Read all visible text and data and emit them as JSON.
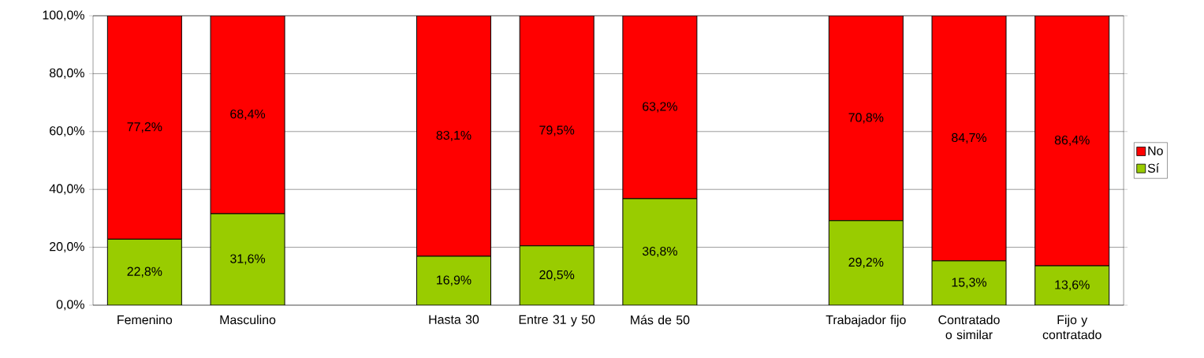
{
  "chart_data": {
    "type": "bar",
    "stacked": true,
    "categories": [
      "Femenino",
      "Masculino",
      null,
      "Hasta 30",
      "Entre 31 y 50",
      "Más de 50",
      null,
      "Trabajador fijo",
      "Contratado o similar",
      "Fijo y contratado"
    ],
    "series": [
      {
        "name": "Sí",
        "color": "#99cc00",
        "values": [
          22.8,
          31.6,
          null,
          16.9,
          20.5,
          36.8,
          null,
          29.2,
          15.3,
          13.6
        ],
        "value_labels": [
          "22,8%",
          "31,6%",
          null,
          "16,9%",
          "20,5%",
          "36,8%",
          null,
          "29,2%",
          "15,3%",
          "13,6%"
        ]
      },
      {
        "name": "No",
        "color": "#ff0000",
        "values": [
          77.2,
          68.4,
          null,
          83.1,
          79.5,
          63.2,
          null,
          70.8,
          84.7,
          86.4
        ],
        "value_labels": [
          "77,2%",
          "68,4%",
          null,
          "83,1%",
          "79,5%",
          "63,2%",
          null,
          "70,8%",
          "84,7%",
          "86,4%"
        ]
      }
    ],
    "ylim": [
      0,
      100
    ],
    "yticks": [
      {
        "value": 0,
        "label": "0,0%"
      },
      {
        "value": 20,
        "label": "20,0%"
      },
      {
        "value": 40,
        "label": "40,0%"
      },
      {
        "value": 60,
        "label": "60,0%"
      },
      {
        "value": 80,
        "label": "80,0%"
      },
      {
        "value": 100,
        "label": "100,0%"
      }
    ],
    "grid": "y",
    "legend": "right"
  }
}
